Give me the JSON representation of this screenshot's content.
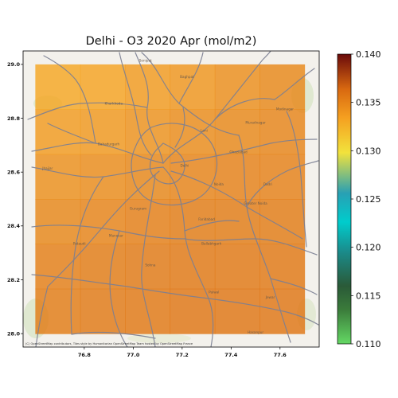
{
  "title": "Delhi - O3 2020 Apr (mol/m2)",
  "attribution": "(C) OpenStreetMap contributors, Tiles style by Humanitarian OpenStreetMap Team hosted by OpenStreetMap France",
  "map": {
    "x_ticks": [
      "76.8",
      "77.0",
      "77.2",
      "77.4",
      "77.6"
    ],
    "y_ticks": [
      "29.0",
      "28.8",
      "28.6",
      "28.4",
      "28.2",
      "28.0"
    ],
    "x_range": [
      76.55,
      77.76
    ],
    "y_range": [
      27.95,
      29.05
    ],
    "data_extent": {
      "lon": [
        76.6,
        77.7
      ],
      "lat": [
        28.0,
        29.0
      ]
    },
    "basemap_labels": [
      {
        "text": "Sonipat",
        "lon": 77.05,
        "lat": 29.01
      },
      {
        "text": "Kharkhoda",
        "lon": 76.92,
        "lat": 28.85
      },
      {
        "text": "Bahadurgarh",
        "lon": 76.9,
        "lat": 28.7
      },
      {
        "text": "Delhi",
        "lon": 77.21,
        "lat": 28.62
      },
      {
        "text": "Ghaziabad",
        "lon": 77.43,
        "lat": 28.67
      },
      {
        "text": "Noida",
        "lon": 77.35,
        "lat": 28.55
      },
      {
        "text": "Gurugram",
        "lon": 77.02,
        "lat": 28.46
      },
      {
        "text": "Faridabad",
        "lon": 77.3,
        "lat": 28.42
      },
      {
        "text": "Greater Noida",
        "lon": 77.5,
        "lat": 28.48
      },
      {
        "text": "Jhajjar",
        "lon": 76.65,
        "lat": 28.61
      },
      {
        "text": "Baghpat",
        "lon": 77.22,
        "lat": 28.95
      },
      {
        "text": "Loni",
        "lon": 77.29,
        "lat": 28.75
      },
      {
        "text": "Dadri",
        "lon": 77.55,
        "lat": 28.55
      },
      {
        "text": "Ballabhgarh",
        "lon": 77.32,
        "lat": 28.33
      },
      {
        "text": "Sohna",
        "lon": 77.07,
        "lat": 28.25
      },
      {
        "text": "Palwal",
        "lon": 77.33,
        "lat": 28.15
      },
      {
        "text": "Manesar",
        "lon": 76.93,
        "lat": 28.36
      },
      {
        "text": "Pataudi",
        "lon": 76.78,
        "lat": 28.33
      },
      {
        "text": "Jewar",
        "lon": 77.56,
        "lat": 28.13
      },
      {
        "text": "Muradnagar",
        "lon": 77.5,
        "lat": 28.78
      },
      {
        "text": "Modinagar",
        "lon": 77.62,
        "lat": 28.83
      },
      {
        "text": "Hasanpur",
        "lon": 77.5,
        "lat": 28.0
      }
    ]
  },
  "colorbar": {
    "min": 0.11,
    "max": 0.14,
    "ticks": [
      "0.140",
      "0.135",
      "0.130",
      "0.125",
      "0.120",
      "0.115",
      "0.110"
    ],
    "colors": [
      "#64d864",
      "#2e5a2e",
      "#1e6e50",
      "#00cccc",
      "#1e96aa",
      "#f0e040",
      "#f5a020",
      "#d06010",
      "#6a0a0a"
    ]
  },
  "field": {
    "values": [
      [
        0.1354,
        0.1355,
        0.1356,
        0.1357,
        0.1357,
        0.1357
      ],
      [
        0.1352,
        0.1354,
        0.1355,
        0.1356,
        0.1356,
        0.1356
      ],
      [
        0.1348,
        0.135,
        0.1352,
        0.1354,
        0.1354,
        0.1354
      ],
      [
        0.1343,
        0.1345,
        0.1348,
        0.135,
        0.1351,
        0.1351
      ],
      [
        0.1337,
        0.1339,
        0.1342,
        0.1345,
        0.1347,
        0.1349
      ],
      [
        0.1331,
        0.1333,
        0.1337,
        0.134,
        0.1344,
        0.1347
      ]
    ]
  }
}
